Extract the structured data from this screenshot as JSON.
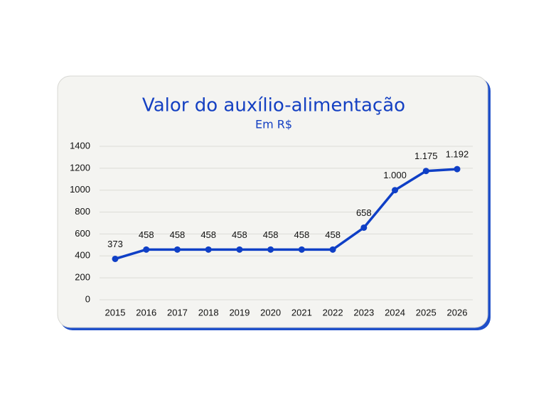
{
  "chart_data": {
    "type": "line",
    "title": "Valor do auxílio-alimentação",
    "subtitle": "Em R$",
    "categories": [
      "2015",
      "2016",
      "2017",
      "2018",
      "2019",
      "2020",
      "2021",
      "2022",
      "2023",
      "2024",
      "2025",
      "2026"
    ],
    "values": [
      373,
      458,
      458,
      458,
      458,
      458,
      458,
      458,
      658,
      1000,
      1175,
      1192
    ],
    "value_labels": [
      "373",
      "458",
      "458",
      "458",
      "458",
      "458",
      "458",
      "458",
      "658",
      "1.000",
      "1.175",
      "1.192"
    ],
    "color": "#0f3fc6",
    "ylim": [
      0,
      1400
    ],
    "yticks": [
      0,
      200,
      400,
      600,
      800,
      1000,
      1200,
      1400
    ],
    "grid": true
  }
}
